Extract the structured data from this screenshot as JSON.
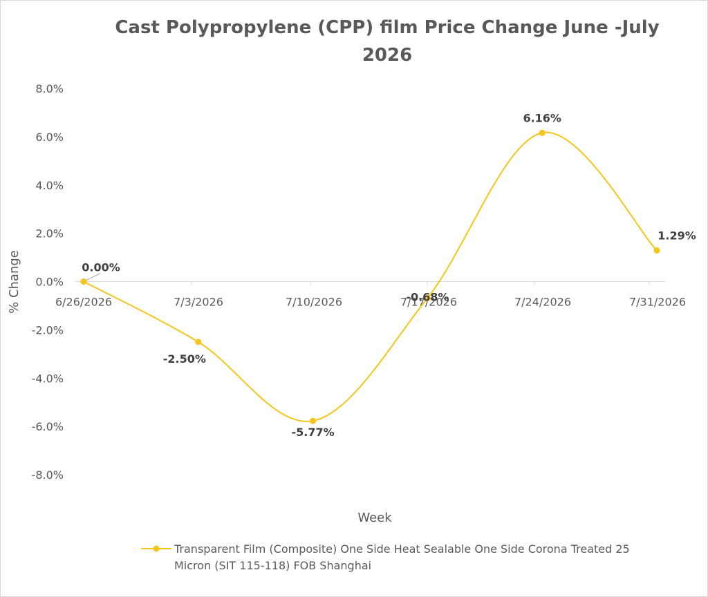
{
  "chart_data": {
    "type": "line",
    "title": "Cast Polypropylene (CPP) film Price Change June -July 2026",
    "xlabel": "Week",
    "ylabel": "% Change",
    "categories": [
      "6/26/2026",
      "7/3/2026",
      "7/10/2026",
      "7/17/2026",
      "7/24/2026",
      "7/31/2026"
    ],
    "series": [
      {
        "name": "Transparent Film (Composite) One Side Heat Sealable One Side Corona Treated 25 Micron (SIT 115-118) FOB Shanghai",
        "values": [
          0.0,
          -2.5,
          -5.77,
          -0.68,
          6.16,
          1.29
        ],
        "labels": [
          "0.00%",
          "-2.50%",
          "-5.77%",
          "-0.68%",
          "6.16%",
          "1.29%"
        ],
        "color": "#F5C518",
        "smooth": true
      }
    ],
    "ylim": [
      -8,
      8
    ],
    "yticks": [
      -8,
      -6,
      -4,
      -2,
      0,
      2,
      4,
      6,
      8
    ],
    "ytick_labels": [
      "-8.0%",
      "-6.0%",
      "-4.0%",
      "-2.0%",
      "0.0%",
      "2.0%",
      "4.0%",
      "6.0%",
      "8.0%"
    ],
    "grid": false,
    "legend_position": "bottom"
  }
}
